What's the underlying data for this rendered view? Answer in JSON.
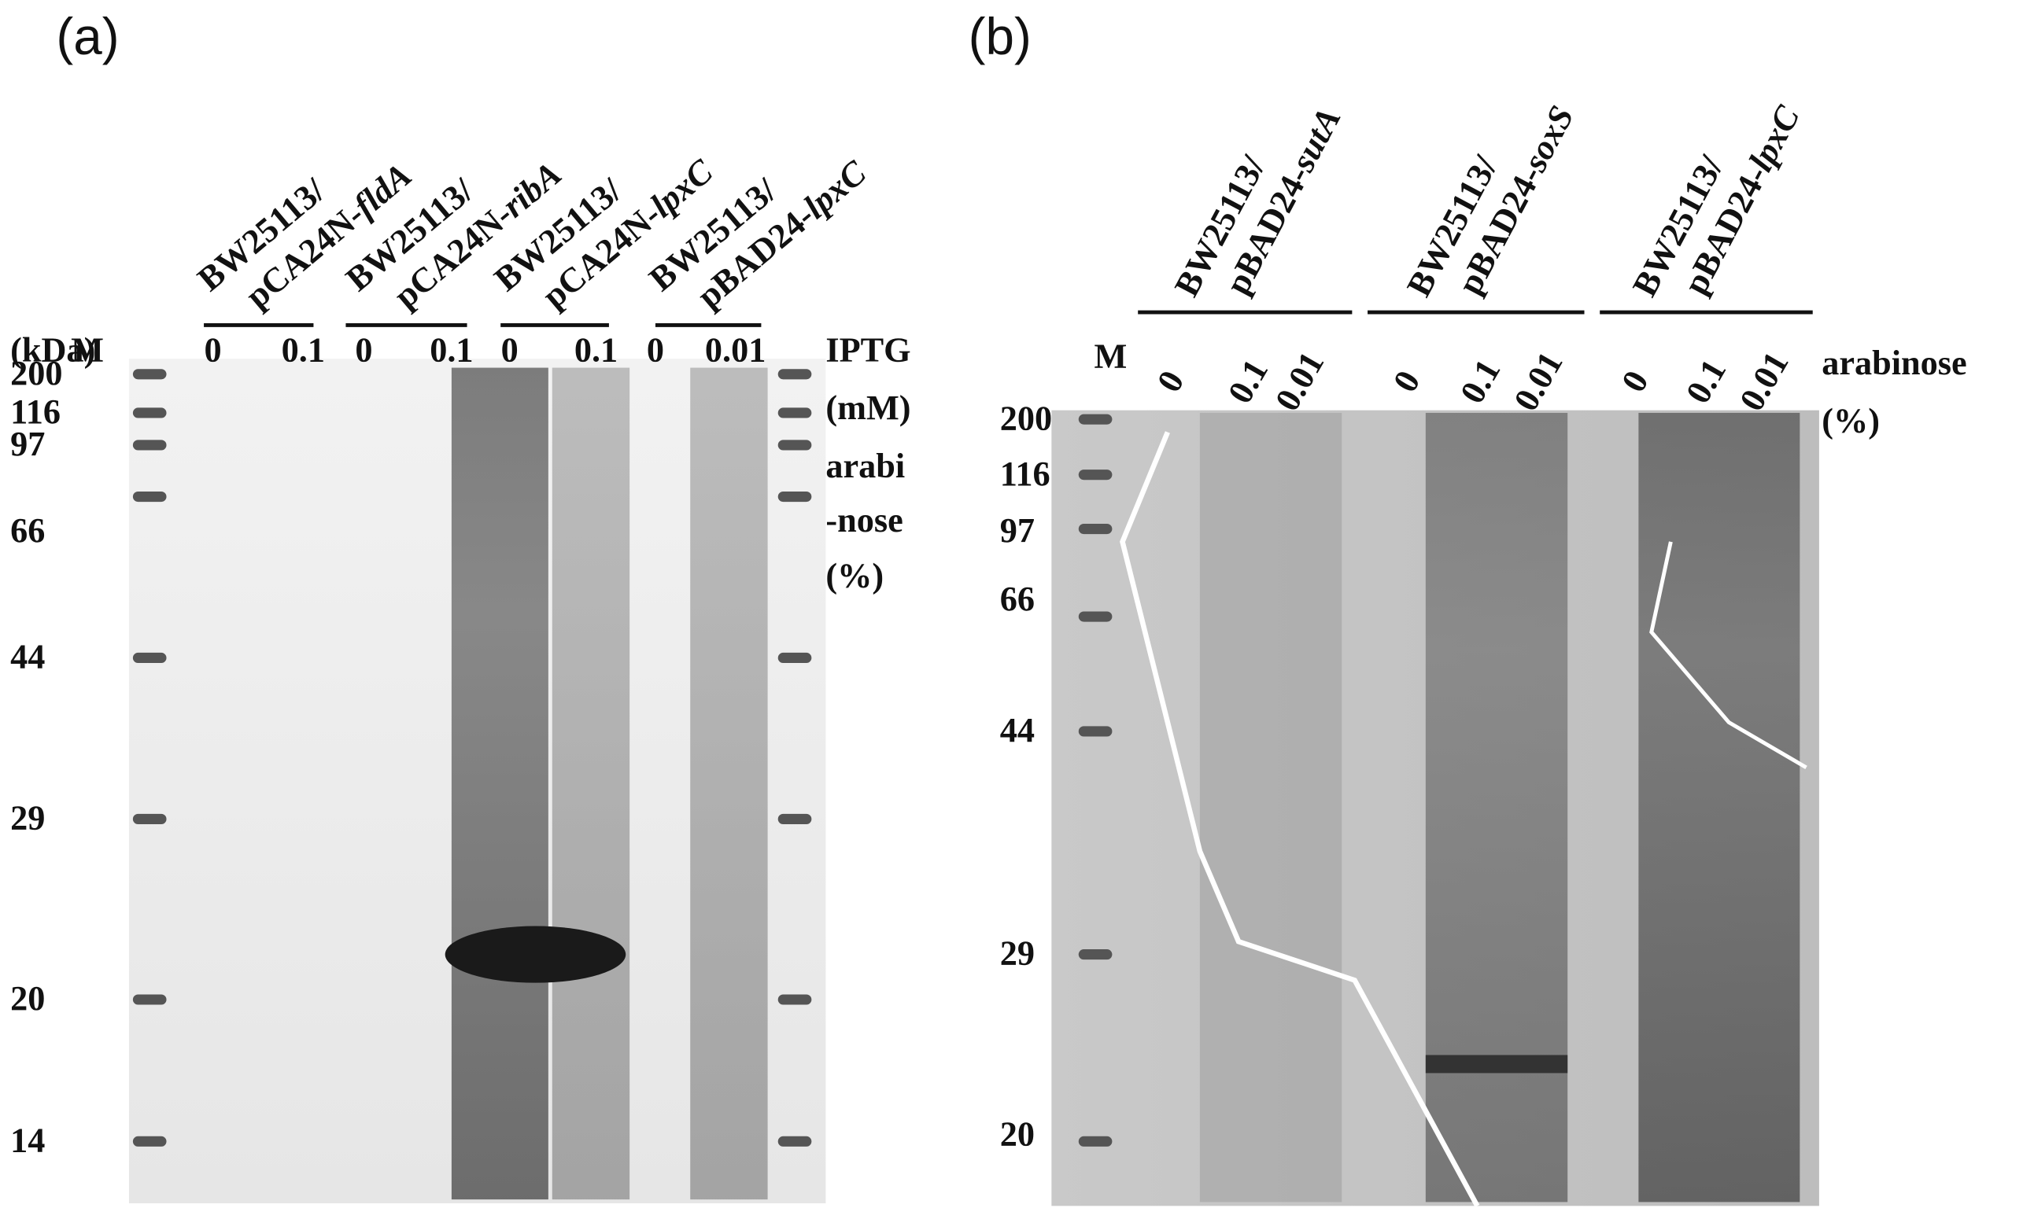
{
  "panels": [
    {
      "label": "(a)",
      "lanes": [
        {
          "strain": "BW25113/",
          "plasmid": "pCA24N-",
          "gene": "fldA"
        },
        {
          "strain": "BW25113/",
          "plasmid": "pCA24N-",
          "gene": "ribA"
        },
        {
          "strain": "BW25113/",
          "plasmid": "pCA24N-",
          "gene": "lpxC"
        },
        {
          "strain": "BW25113/",
          "plasmid": "pBAD24-",
          "gene": "lpxC"
        }
      ],
      "unit": "(kDa)",
      "marker_lane": "M",
      "conditions": [
        "0",
        "0.1",
        "0",
        "0.1",
        "0",
        "0.1",
        "0",
        "0.01"
      ],
      "condition_label": [
        "IPTG",
        "(mM)",
        "arabi",
        "-nose",
        "(%)"
      ],
      "markers": [
        "200",
        "116",
        "97",
        "66",
        "44",
        "29",
        "20",
        "14"
      ]
    },
    {
      "label": "(b)",
      "lanes": [
        {
          "strain": "BW25113/",
          "plasmid": "pBAD24-",
          "gene": "sutA"
        },
        {
          "strain": "BW25113/",
          "plasmid": "pBAD24-",
          "gene": "soxS"
        },
        {
          "strain": "BW25113/",
          "plasmid": "pBAD24-",
          "gene": "lpxC"
        }
      ],
      "marker_lane": "M",
      "conditions": [
        "0",
        "0.1",
        "0.01",
        "0",
        "0.1",
        "0.01",
        "0",
        "0.1",
        "0.01"
      ],
      "condition_label": [
        "arabinose",
        "(%)"
      ],
      "markers": [
        "200",
        "116",
        "97",
        "66",
        "44",
        "29",
        "20"
      ]
    }
  ]
}
